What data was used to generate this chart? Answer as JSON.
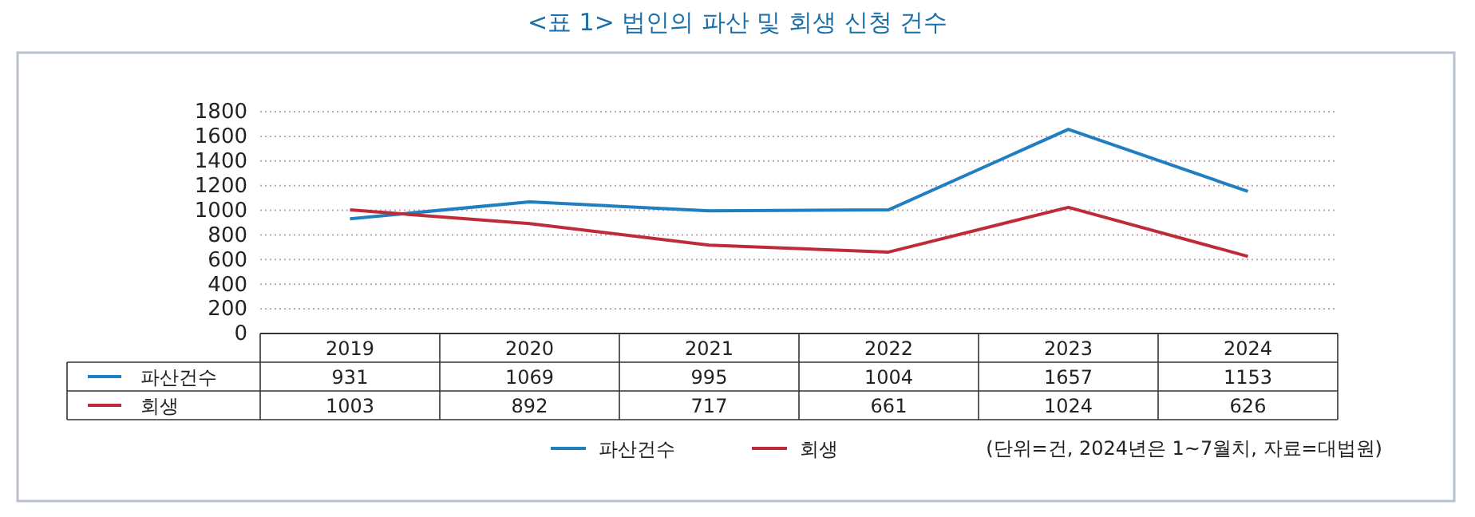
{
  "chart_data": {
    "type": "line",
    "title": "<표 1> 법인의 파산 및 회생 신청 건수",
    "categories": [
      "2019",
      "2020",
      "2021",
      "2022",
      "2023",
      "2024"
    ],
    "series": [
      {
        "name": "파산건수",
        "color": "#1f7fc0",
        "values": [
          931,
          1069,
          995,
          1004,
          1657,
          1153
        ]
      },
      {
        "name": "회생",
        "color": "#be2c3a",
        "values": [
          1003,
          892,
          717,
          661,
          1024,
          626
        ]
      }
    ],
    "ylim": [
      0,
      1800
    ],
    "yticks": [
      0,
      200,
      400,
      600,
      800,
      1000,
      1200,
      1400,
      1600,
      1800
    ],
    "grid": "y",
    "legend": "bottom",
    "marker": "none",
    "line_style": "solid",
    "data_labels": true,
    "annotations": [
      "(단위=건, 2024년은 1~7월치, 자료=대법원)"
    ]
  }
}
